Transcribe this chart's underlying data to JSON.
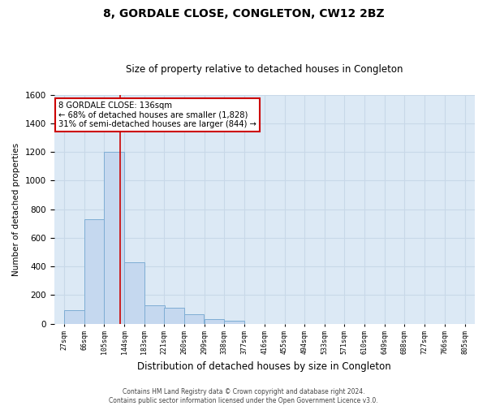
{
  "title": "8, GORDALE CLOSE, CONGLETON, CW12 2BZ",
  "subtitle": "Size of property relative to detached houses in Congleton",
  "xlabel": "Distribution of detached houses by size in Congleton",
  "ylabel": "Number of detached properties",
  "footer_line1": "Contains HM Land Registry data © Crown copyright and database right 2024.",
  "footer_line2": "Contains public sector information licensed under the Open Government Licence v3.0.",
  "annotation_line1": "8 GORDALE CLOSE: 136sqm",
  "annotation_line2": "← 68% of detached houses are smaller (1,828)",
  "annotation_line3": "31% of semi-detached houses are larger (844) →",
  "property_size": 136,
  "bin_edges": [
    27,
    66,
    105,
    144,
    183,
    221,
    260,
    299,
    338,
    377,
    416,
    455,
    494,
    533,
    571,
    610,
    649,
    688,
    727,
    766,
    805
  ],
  "bin_counts": [
    95,
    730,
    1200,
    430,
    130,
    110,
    65,
    30,
    20,
    0,
    0,
    0,
    0,
    0,
    0,
    0,
    0,
    0,
    0,
    0
  ],
  "bar_facecolor": "#c5d8ef",
  "bar_edgecolor": "#7eadd4",
  "vline_color": "#cc0000",
  "plot_bg_color": "#dce9f5",
  "fig_bg_color": "#ffffff",
  "grid_color": "#c8d8e8",
  "annotation_box_facecolor": "#ffffff",
  "annotation_box_edgecolor": "#cc0000",
  "ylim": [
    0,
    1600
  ],
  "yticks": [
    0,
    200,
    400,
    600,
    800,
    1000,
    1200,
    1400,
    1600
  ],
  "tick_labels": [
    "27sqm",
    "66sqm",
    "105sqm",
    "144sqm",
    "183sqm",
    "221sqm",
    "260sqm",
    "299sqm",
    "338sqm",
    "377sqm",
    "416sqm",
    "455sqm",
    "494sqm",
    "533sqm",
    "571sqm",
    "610sqm",
    "649sqm",
    "688sqm",
    "727sqm",
    "766sqm",
    "805sqm"
  ],
  "title_fontsize": 10,
  "subtitle_fontsize": 8.5,
  "ylabel_fontsize": 7.5,
  "xlabel_fontsize": 8.5,
  "ytick_fontsize": 7.5,
  "xtick_fontsize": 6
}
